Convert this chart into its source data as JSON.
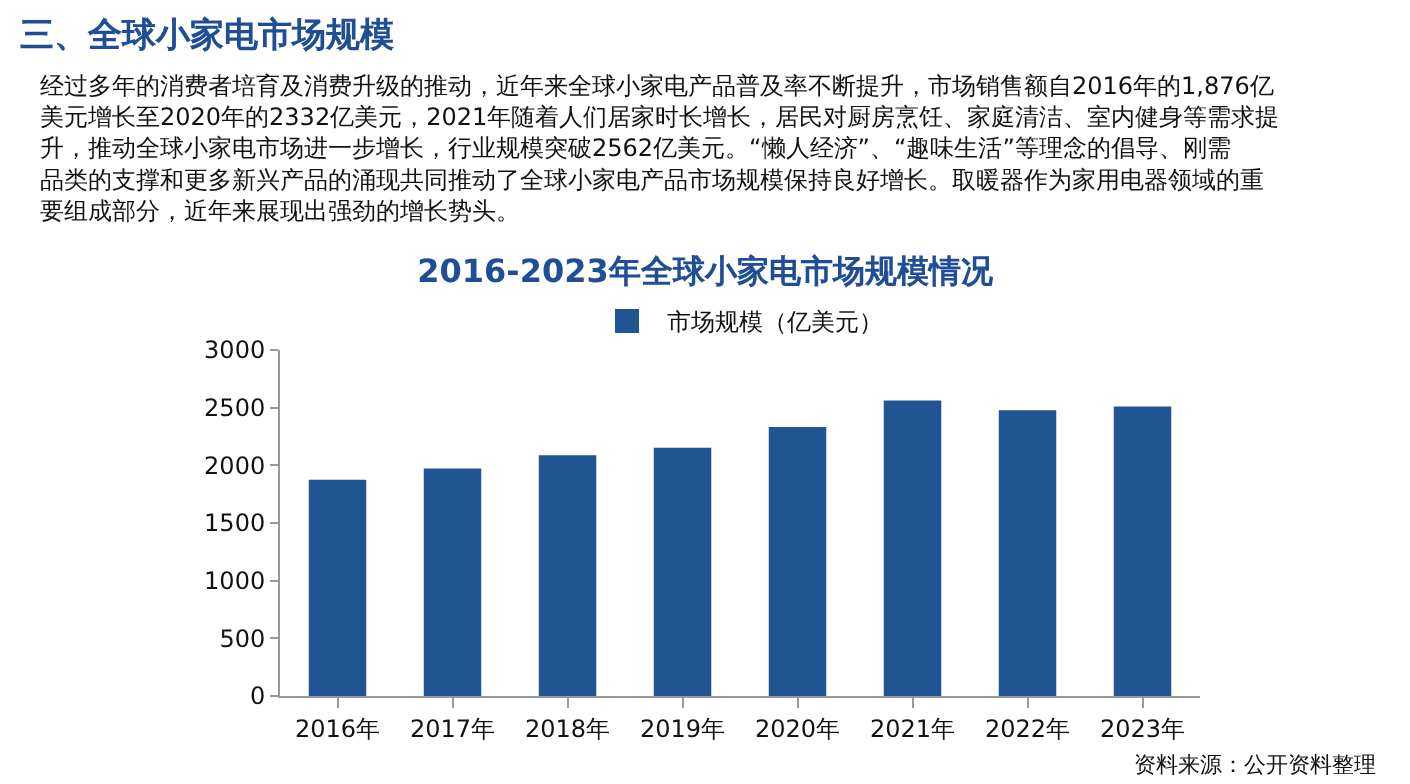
{
  "chart_data": {
    "type": "bar",
    "title": "2016-2023年全球小家电市场规模情况",
    "annotations": [
      "三、全球小家电市场规模",
      "经过多年的消费者培育及消费升级的推动，近年来全球小家电产品普及率不断提升，市场销售额自2016年的1,876亿美元增长至2020年的2332亿美元，2021年随着人们居家时长增长，居民对厨房烹饪、家庭清洁、室内健身等需求提升，推动全球小家电市场进一步增长，行业规模突破2562亿美元。“懒人经济”、“趣味生活”等理念的倡导、刚需品类的支撑和更多新兴产品的涌现共同推动了全球小家电产品市场规模保持良好增长。取暖器作为家用电器领域的重要组成部分，近年来展现出强劲的增长势头。",
      "资料来源：公开资料整理"
    ],
    "categories": [
      "2016年",
      "2017年",
      "2018年",
      "2019年",
      "2020年",
      "2021年",
      "2022年",
      "2023年"
    ],
    "series": [
      {
        "name": "市场规模（亿美元）",
        "color": "#215493",
        "values": [
          1876,
          1973,
          2087,
          2152,
          2332,
          2562,
          2478,
          2511
        ]
      }
    ],
    "ylim": [
      0,
      3000
    ],
    "yticks": [
      0,
      500,
      1000,
      1500,
      2000,
      2500,
      3000
    ],
    "grid": false,
    "legend": "top"
  }
}
